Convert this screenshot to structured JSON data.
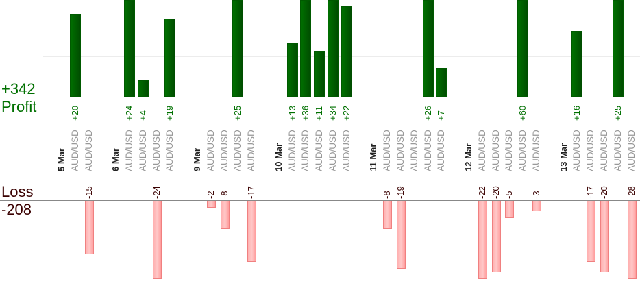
{
  "summary": {
    "profit_total": "+342",
    "profit_label": "Profit",
    "loss_label": "Loss",
    "loss_total": "-208",
    "profit_color": "#007000",
    "loss_color": "#ffb0b0"
  },
  "chart_data": {
    "type": "bar",
    "groups": [
      {
        "date": "5 Mar",
        "trades": [
          {
            "symbol": "AUD/USD",
            "result": 20
          },
          {
            "symbol": "AUD/USD",
            "result": -15
          }
        ]
      },
      {
        "date": "6 Mar",
        "trades": [
          {
            "symbol": "AUD/USD",
            "result": 24
          },
          {
            "symbol": "AUD/USD",
            "result": 4
          },
          {
            "symbol": "AUD/USD",
            "result": -24
          },
          {
            "symbol": "AUD/USD",
            "result": 19
          }
        ]
      },
      {
        "date": "9 Mar",
        "trades": [
          {
            "symbol": "AUD/USD",
            "result": -2
          },
          {
            "symbol": "AUD/USD",
            "result": -8
          },
          {
            "symbol": "AUD/USD",
            "result": 25
          },
          {
            "symbol": "AUD/USD",
            "result": -17
          }
        ]
      },
      {
        "date": "10 Mar",
        "trades": [
          {
            "symbol": "AUD/USD",
            "result": 13
          },
          {
            "symbol": "AUD/USD",
            "result": 36
          },
          {
            "symbol": "AUD/USD",
            "result": 11
          },
          {
            "symbol": "AUD/USD",
            "result": 34
          },
          {
            "symbol": "AUD/USD",
            "result": 22
          }
        ]
      },
      {
        "date": "11 Mar",
        "trades": [
          {
            "symbol": "AUD/USD",
            "result": -8
          },
          {
            "symbol": "AUD/USD",
            "result": -19
          },
          {
            "symbol": "AUD/USD",
            "result": 0
          },
          {
            "symbol": "AUD/USD",
            "result": 26
          },
          {
            "symbol": "AUD/USD",
            "result": 7
          }
        ]
      },
      {
        "date": "12 Mar",
        "trades": [
          {
            "symbol": "AUD/USD",
            "result": -22
          },
          {
            "symbol": "AUD/USD",
            "result": -20
          },
          {
            "symbol": "AUD/USD",
            "result": -5
          },
          {
            "symbol": "AUD/USD",
            "result": 60
          },
          {
            "symbol": "AUD/USD",
            "result": -3
          }
        ]
      },
      {
        "date": "13 Mar",
        "trades": [
          {
            "symbol": "AUD/USD",
            "result": 16
          },
          {
            "symbol": "AUD/USD",
            "result": -17
          },
          {
            "symbol": "AUD/USD",
            "result": -20
          },
          {
            "symbol": "AUD/USD",
            "result": 25
          },
          {
            "symbol": "AUD/USD",
            "result": -28
          }
        ]
      }
    ],
    "grid": true
  }
}
